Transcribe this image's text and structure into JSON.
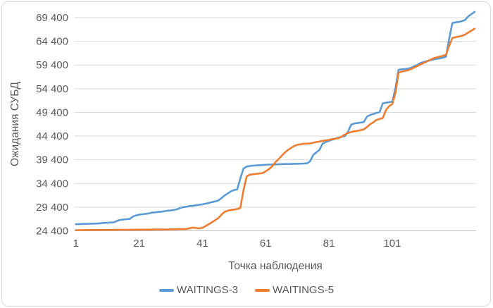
{
  "chart_data": {
    "type": "line",
    "title": "",
    "xlabel": "Точка наблюдения",
    "ylabel": "Ожидания СУБД",
    "grid": true,
    "legend_position": "bottom",
    "n_points": 127,
    "x_start": 1,
    "x_step": 1,
    "x_ticks": [
      1,
      21,
      41,
      61,
      81,
      101
    ],
    "y_ticks": [
      24400,
      29400,
      34400,
      39400,
      44400,
      49400,
      54400,
      59400,
      64400,
      69400
    ],
    "y_tick_labels": [
      "24 400",
      "29 400",
      "34 400",
      "39 400",
      "44 400",
      "49 400",
      "54 400",
      "59 400",
      "64 400",
      "69 400"
    ],
    "ylim": [
      24400,
      70800
    ],
    "grid_color": "#D9D9D9",
    "axis_color": "#BFBFBF",
    "text_color": "#595959",
    "border_color": "#D9D9D9",
    "series": [
      {
        "name": "WAITINGS-3",
        "color": "#5B9BD5",
        "values": [
          25800,
          25820,
          25850,
          25870,
          25900,
          25900,
          25930,
          25950,
          26000,
          26080,
          26100,
          26150,
          26200,
          26500,
          26700,
          26800,
          26850,
          26900,
          27400,
          27650,
          27800,
          27900,
          27980,
          28060,
          28250,
          28300,
          28380,
          28450,
          28550,
          28650,
          28720,
          28800,
          28950,
          29250,
          29380,
          29500,
          29630,
          29700,
          29800,
          29900,
          30000,
          30120,
          30280,
          30450,
          30600,
          30800,
          31300,
          31850,
          32300,
          32750,
          33000,
          33150,
          35500,
          37550,
          37950,
          38080,
          38150,
          38200,
          38250,
          38300,
          38340,
          38380,
          38400,
          38420,
          38450,
          38480,
          38500,
          38500,
          38520,
          38540,
          38560,
          38580,
          38600,
          38650,
          39050,
          40400,
          40950,
          41500,
          42800,
          43150,
          43400,
          43650,
          43850,
          44050,
          44250,
          44400,
          45300,
          46800,
          47050,
          47150,
          47250,
          47350,
          48500,
          48850,
          49050,
          49300,
          49450,
          51300,
          51450,
          51550,
          51650,
          54500,
          58400,
          58500,
          58550,
          58650,
          58800,
          59150,
          59450,
          59850,
          60050,
          60250,
          60400,
          60550,
          60700,
          60800,
          60950,
          61150,
          65000,
          68250,
          68400,
          68500,
          68650,
          68900,
          69650,
          70150,
          70600
        ]
      },
      {
        "name": "WAITINGS-5",
        "color": "#ED7D31",
        "values": [
          24550,
          24550,
          24560,
          24560,
          24570,
          24570,
          24580,
          24580,
          24590,
          24590,
          24600,
          24600,
          24610,
          24610,
          24620,
          24620,
          24630,
          24630,
          24640,
          24640,
          24650,
          24650,
          24660,
          24660,
          24670,
          24680,
          24680,
          24690,
          24700,
          24700,
          24720,
          24730,
          24740,
          24750,
          24760,
          24780,
          24950,
          25080,
          25000,
          24900,
          25050,
          25400,
          25800,
          26200,
          26650,
          27100,
          27800,
          28400,
          28650,
          28800,
          28900,
          29000,
          29250,
          33000,
          35900,
          36250,
          36350,
          36420,
          36500,
          36600,
          36950,
          37400,
          38000,
          38850,
          39500,
          40200,
          40900,
          41450,
          41900,
          42300,
          42550,
          42680,
          42750,
          42800,
          42850,
          43000,
          43150,
          43250,
          43400,
          43500,
          43600,
          43750,
          43850,
          43950,
          44300,
          44700,
          45050,
          45250,
          45400,
          45500,
          45650,
          45800,
          46300,
          46900,
          47300,
          47800,
          48000,
          48200,
          49900,
          50700,
          51150,
          53500,
          57800,
          58000,
          58150,
          58300,
          58550,
          58900,
          59200,
          59550,
          59850,
          60150,
          60500,
          60800,
          61000,
          61150,
          61350,
          61550,
          63500,
          65100,
          65250,
          65400,
          65550,
          65850,
          66250,
          66650,
          67050
        ]
      }
    ]
  }
}
